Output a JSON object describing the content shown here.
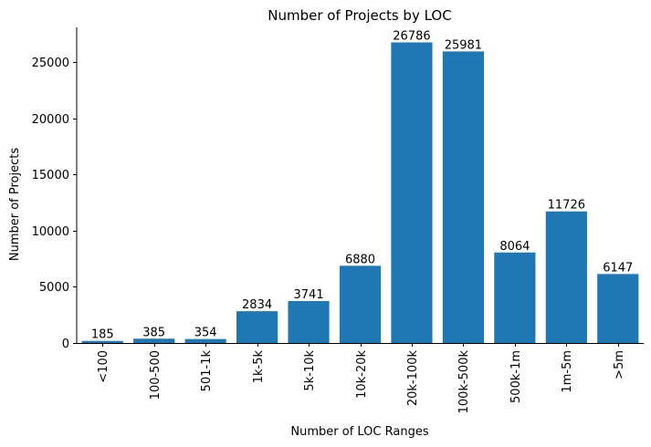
{
  "chart_data": {
    "type": "bar",
    "title": "Number of Projects by LOC",
    "xlabel": "Number of LOC Ranges",
    "ylabel": "Number of Projects",
    "categories": [
      "<100",
      "100-500",
      "501-1k",
      "1k-5k",
      "5k-10k",
      "10k-20k",
      "20k-100k",
      "100k-500k",
      "500k-1m",
      "1m-5m",
      ">5m"
    ],
    "values": [
      185,
      385,
      354,
      2834,
      3741,
      6880,
      26786,
      25981,
      8064,
      11726,
      6147
    ],
    "data_labels": [
      "185",
      "385",
      "354",
      "2834",
      "3741",
      "6880",
      "26786",
      "25981",
      "8064",
      "11726",
      "6147"
    ],
    "yticks": [
      0,
      5000,
      10000,
      15000,
      20000,
      25000
    ],
    "ytick_labels": [
      "0",
      "5000",
      "10000",
      "15000",
      "20000",
      "25000"
    ],
    "ylim": [
      0,
      28125
    ],
    "bar_color": "#1f77b4",
    "grid": false,
    "legend": false
  }
}
